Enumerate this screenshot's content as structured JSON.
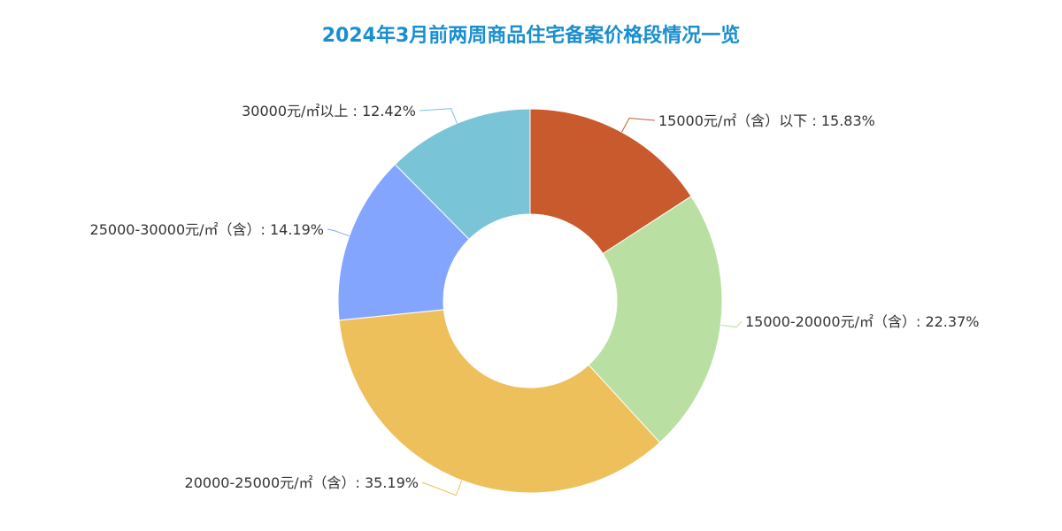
{
  "chart_data": {
    "type": "pie",
    "title": "2024年3月前两周商品住宅备案价格段情况一览",
    "donut": true,
    "series": [
      {
        "values": [
          {
            "label": "15000元/㎡（含）以下",
            "value": 15.83,
            "display": "15000元/㎡（含）以下 : 15.83%",
            "color": "#c85a2e"
          },
          {
            "label": "15000-20000元/㎡（含）",
            "value": 22.37,
            "display": "15000-20000元/㎡（含）: 22.37%",
            "color": "#badfa2"
          },
          {
            "label": "20000-25000元/㎡（含）",
            "value": 35.19,
            "display": "20000-25000元/㎡（含）: 35.19%",
            "color": "#eec05b"
          },
          {
            "label": "25000-30000元/㎡（含）",
            "value": 14.19,
            "display": "25000-30000元/㎡（含）: 14.19%",
            "color": "#83a5fd"
          },
          {
            "label": "30000元/㎡以上",
            "value": 12.42,
            "display": "30000元/㎡以上 : 12.42%",
            "color": "#7ac4d7"
          }
        ]
      }
    ]
  }
}
